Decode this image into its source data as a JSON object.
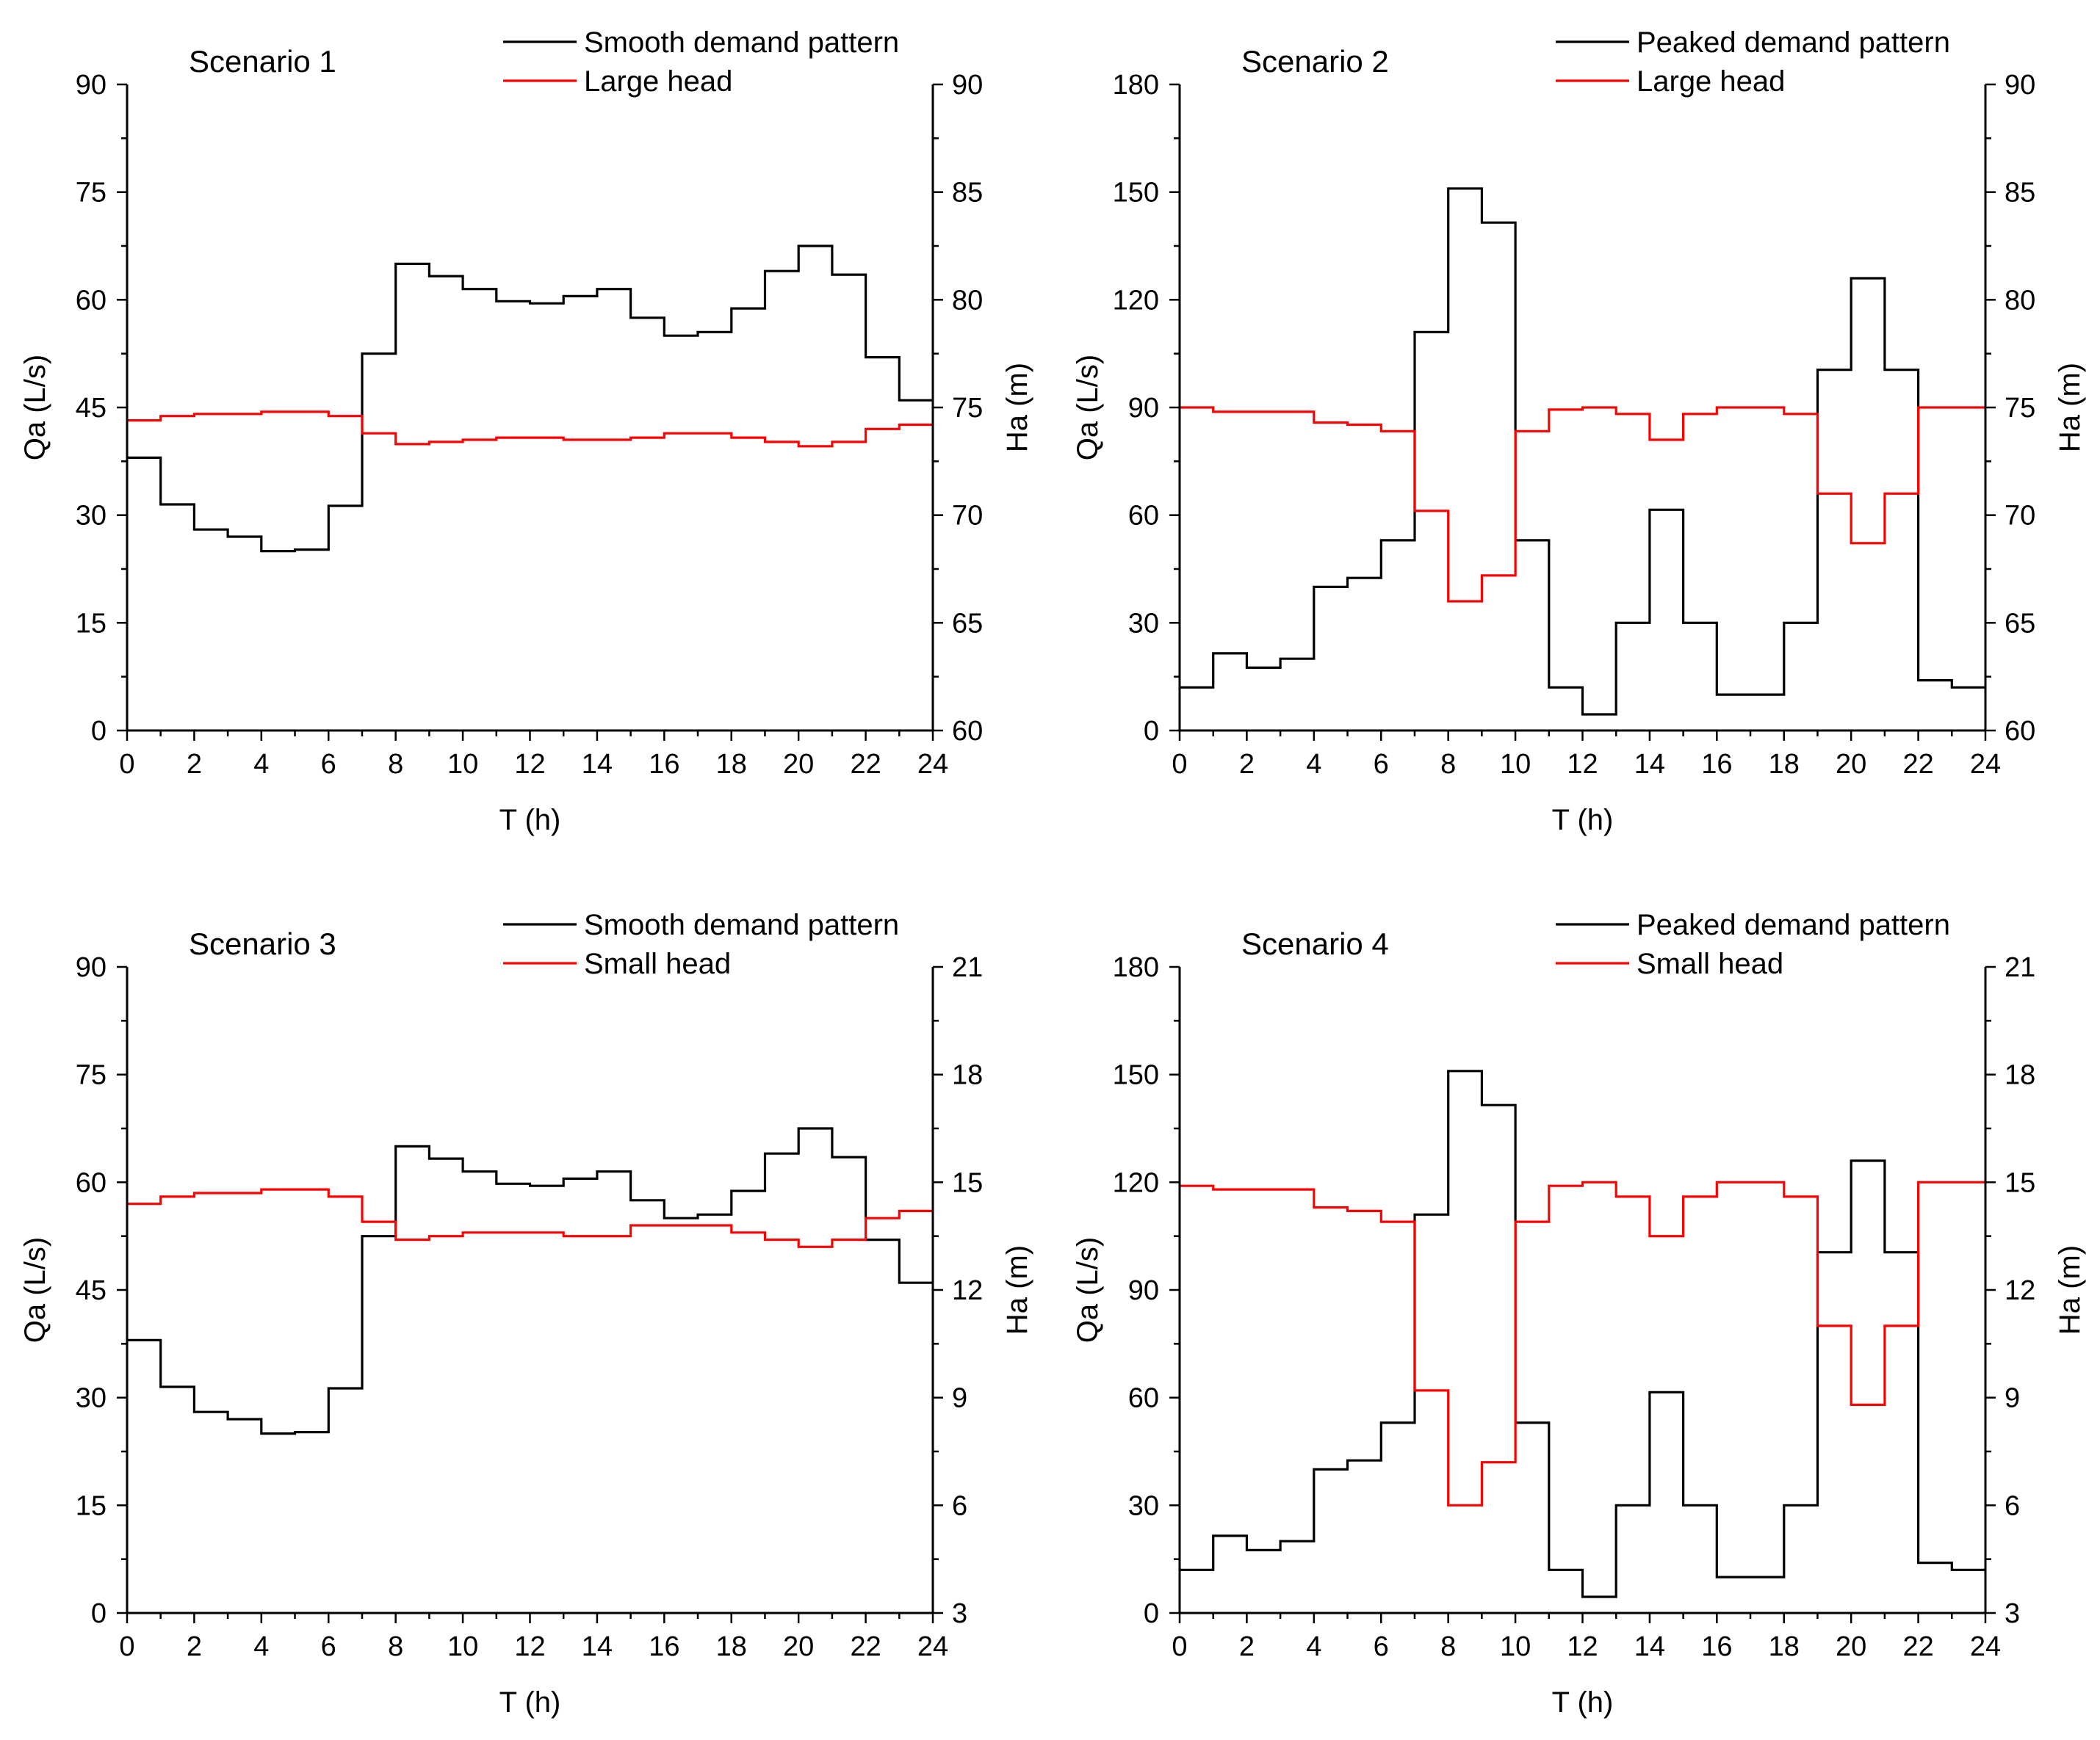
{
  "chart_data": [
    {
      "type": "line",
      "title": "Scenario 1",
      "xlabel": "T (h)",
      "ylabel": "Qa (L/s)",
      "y2label": "Ha (m)",
      "xlim": [
        0,
        24
      ],
      "ylim": [
        0,
        90
      ],
      "y2lim": [
        60,
        90
      ],
      "xticks": [
        0,
        2,
        4,
        6,
        8,
        10,
        12,
        14,
        16,
        18,
        20,
        22,
        24
      ],
      "yticks": [
        0,
        15,
        30,
        45,
        60,
        75,
        90
      ],
      "y2ticks": [
        60,
        65,
        70,
        75,
        80,
        85,
        90
      ],
      "grid": false,
      "legend_position": "top-right",
      "step": "post",
      "series": [
        {
          "name": "Smooth demand pattern",
          "color": "#000000",
          "axis": "left",
          "x": [
            0,
            1,
            2,
            3,
            4,
            5,
            6,
            7,
            8,
            9,
            10,
            11,
            12,
            13,
            14,
            15,
            16,
            17,
            18,
            19,
            20,
            21,
            22,
            23
          ],
          "values": [
            38,
            31.5,
            28,
            27,
            25,
            25.2,
            31.3,
            52.5,
            65,
            63.3,
            61.5,
            59.8,
            59.5,
            60.5,
            61.5,
            57.5,
            55,
            55.5,
            58.8,
            64,
            67.5,
            63.5,
            52,
            46
          ]
        },
        {
          "name": "Large head",
          "color": "#ff0000",
          "axis": "right",
          "x": [
            0,
            1,
            2,
            3,
            4,
            5,
            6,
            7,
            8,
            9,
            10,
            11,
            12,
            13,
            14,
            15,
            16,
            17,
            18,
            19,
            20,
            21,
            22,
            23
          ],
          "values": [
            74.4,
            74.6,
            74.7,
            74.7,
            74.8,
            74.8,
            74.6,
            73.8,
            73.3,
            73.4,
            73.5,
            73.6,
            73.6,
            73.5,
            73.5,
            73.6,
            73.8,
            73.8,
            73.6,
            73.4,
            73.2,
            73.4,
            74,
            74.2
          ]
        }
      ]
    },
    {
      "type": "line",
      "title": "Scenario 2",
      "xlabel": "T (h)",
      "ylabel": "Qa (L/s)",
      "y2label": "Ha (m)",
      "xlim": [
        0,
        24
      ],
      "ylim": [
        0,
        180
      ],
      "y2lim": [
        60,
        90
      ],
      "xticks": [
        0,
        2,
        4,
        6,
        8,
        10,
        12,
        14,
        16,
        18,
        20,
        22,
        24
      ],
      "yticks": [
        0,
        30,
        60,
        90,
        120,
        150,
        180
      ],
      "y2ticks": [
        60,
        65,
        70,
        75,
        80,
        85,
        90
      ],
      "grid": false,
      "legend_position": "top-right",
      "step": "post",
      "series": [
        {
          "name": "Peaked demand pattern",
          "color": "#000000",
          "axis": "left",
          "x": [
            0,
            1,
            2,
            3,
            4,
            5,
            6,
            7,
            8,
            9,
            10,
            11,
            12,
            13,
            14,
            15,
            16,
            17,
            18,
            19,
            20,
            21,
            22,
            23
          ],
          "values": [
            12,
            21.5,
            17.5,
            20,
            40,
            42.5,
            53,
            111,
            151,
            141.5,
            53,
            12,
            4.5,
            30,
            61.5,
            30,
            10,
            10,
            30,
            100.5,
            126,
            100.5,
            14,
            12
          ]
        },
        {
          "name": "Large head",
          "color": "#ff0000",
          "axis": "right",
          "x": [
            0,
            1,
            2,
            3,
            4,
            5,
            6,
            7,
            8,
            9,
            10,
            11,
            12,
            13,
            14,
            15,
            16,
            17,
            18,
            19,
            20,
            21,
            22,
            23
          ],
          "values": [
            75,
            74.8,
            74.8,
            74.8,
            74.3,
            74.2,
            73.9,
            70.2,
            66,
            67.2,
            73.9,
            74.9,
            75,
            74.7,
            73.5,
            74.7,
            75,
            75,
            74.7,
            71,
            68.7,
            71,
            75,
            75
          ]
        }
      ]
    },
    {
      "type": "line",
      "title": "Scenario 3",
      "xlabel": "T (h)",
      "ylabel": "Qa (L/s)",
      "y2label": "Ha (m)",
      "xlim": [
        0,
        24
      ],
      "ylim": [
        0,
        90
      ],
      "y2lim": [
        3,
        21
      ],
      "xticks": [
        0,
        2,
        4,
        6,
        8,
        10,
        12,
        14,
        16,
        18,
        20,
        22,
        24
      ],
      "yticks": [
        0,
        15,
        30,
        45,
        60,
        75,
        90
      ],
      "y2ticks": [
        3,
        6,
        9,
        12,
        15,
        18,
        21
      ],
      "grid": false,
      "legend_position": "top-right",
      "step": "post",
      "series": [
        {
          "name": "Smooth demand pattern",
          "color": "#000000",
          "axis": "left",
          "x": [
            0,
            1,
            2,
            3,
            4,
            5,
            6,
            7,
            8,
            9,
            10,
            11,
            12,
            13,
            14,
            15,
            16,
            17,
            18,
            19,
            20,
            21,
            22,
            23
          ],
          "values": [
            38,
            31.5,
            28,
            27,
            25,
            25.2,
            31.3,
            52.5,
            65,
            63.3,
            61.5,
            59.8,
            59.5,
            60.5,
            61.5,
            57.5,
            55,
            55.5,
            58.8,
            64,
            67.5,
            63.5,
            52,
            46
          ]
        },
        {
          "name": "Small head",
          "color": "#ff0000",
          "axis": "right",
          "x": [
            0,
            1,
            2,
            3,
            4,
            5,
            6,
            7,
            8,
            9,
            10,
            11,
            12,
            13,
            14,
            15,
            16,
            17,
            18,
            19,
            20,
            21,
            22,
            23
          ],
          "values": [
            14.4,
            14.6,
            14.7,
            14.7,
            14.8,
            14.8,
            14.6,
            13.9,
            13.4,
            13.5,
            13.6,
            13.6,
            13.6,
            13.5,
            13.5,
            13.8,
            13.8,
            13.8,
            13.6,
            13.4,
            13.2,
            13.4,
            14,
            14.2
          ]
        }
      ]
    },
    {
      "type": "line",
      "title": "Scenario 4",
      "xlabel": "T (h)",
      "ylabel": "Qa (L/s)",
      "y2label": "Ha (m)",
      "xlim": [
        0,
        24
      ],
      "ylim": [
        0,
        180
      ],
      "y2lim": [
        3,
        21
      ],
      "xticks": [
        0,
        2,
        4,
        6,
        8,
        10,
        12,
        14,
        16,
        18,
        20,
        22,
        24
      ],
      "yticks": [
        0,
        30,
        60,
        90,
        120,
        150,
        180
      ],
      "y2ticks": [
        3,
        6,
        9,
        12,
        15,
        18,
        21
      ],
      "grid": false,
      "legend_position": "top-right",
      "step": "post",
      "series": [
        {
          "name": "Peaked demand pattern",
          "color": "#000000",
          "axis": "left",
          "x": [
            0,
            1,
            2,
            3,
            4,
            5,
            6,
            7,
            8,
            9,
            10,
            11,
            12,
            13,
            14,
            15,
            16,
            17,
            18,
            19,
            20,
            21,
            22,
            23
          ],
          "values": [
            12,
            21.5,
            17.5,
            20,
            40,
            42.5,
            53,
            111,
            151,
            141.5,
            53,
            12,
            4.5,
            30,
            61.5,
            30,
            10,
            10,
            30,
            100.5,
            126,
            100.5,
            14,
            12
          ]
        },
        {
          "name": "Small head",
          "color": "#ff0000",
          "axis": "right",
          "x": [
            0,
            1,
            2,
            3,
            4,
            5,
            6,
            7,
            8,
            9,
            10,
            11,
            12,
            13,
            14,
            15,
            16,
            17,
            18,
            19,
            20,
            21,
            22,
            23
          ],
          "values": [
            14.9,
            14.8,
            14.8,
            14.8,
            14.3,
            14.2,
            13.9,
            9.2,
            6,
            7.2,
            13.9,
            14.9,
            15,
            14.6,
            13.5,
            14.6,
            15,
            15,
            14.6,
            11,
            8.8,
            11,
            15,
            15
          ]
        }
      ]
    }
  ]
}
